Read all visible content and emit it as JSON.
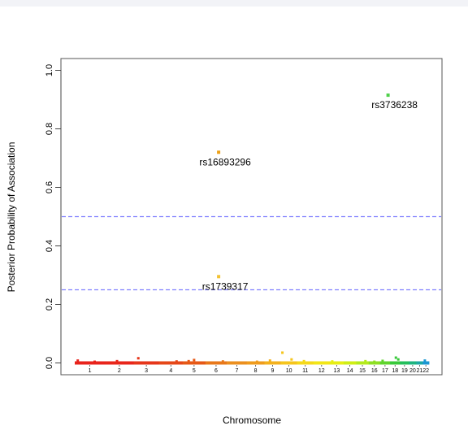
{
  "chart_data": {
    "type": "scatter",
    "xlabel": "Chromosome",
    "ylabel": "Posterior Probability of Association",
    "ylim": [
      0,
      1
    ],
    "y_ticks": [
      "0.0",
      "0.2",
      "0.4",
      "0.6",
      "0.8",
      "1.0"
    ],
    "x_categories": [
      "1",
      "2",
      "3",
      "4",
      "5",
      "6",
      "7",
      "8",
      "9",
      "10",
      "11",
      "12",
      "13",
      "14",
      "15",
      "16",
      "17",
      "18",
      "19",
      "20",
      "21",
      "22"
    ],
    "chromosome_colors": [
      "#e8231c",
      "#e8261b",
      "#e6361a",
      "#e54718",
      "#e65816",
      "#e8781a",
      "#eb8f1f",
      "#ef9b1d",
      "#f3b11c",
      "#f5c51c",
      "#f5d91a",
      "#f2e617",
      "#e6ee14",
      "#cfee15",
      "#b4ea1c",
      "#8edf23",
      "#5fd42c",
      "#38c93a",
      "#24bf5c",
      "#1eb47f",
      "#1ca9a3",
      "#1a96d2"
    ],
    "thresholds": [
      {
        "y": 0.5,
        "color": "#8080ff"
      },
      {
        "y": 0.25,
        "color": "#8080ff"
      }
    ],
    "highlighted_points": [
      {
        "label": "rs3736238",
        "chromosome": "17",
        "y": 0.915,
        "color": "#4ed04a"
      },
      {
        "label": "rs16893296",
        "chromosome": "6",
        "y": 0.72,
        "color": "#eda117"
      },
      {
        "label": "rs1739317",
        "chromosome": "6",
        "y": 0.295,
        "color": "#f2c233"
      }
    ],
    "background_points": [
      {
        "chromosome": "1",
        "y": 0.008
      },
      {
        "chromosome": "1",
        "y": 0.004
      },
      {
        "chromosome": "2",
        "y": 0.006
      },
      {
        "chromosome": "3",
        "y": 0.016
      },
      {
        "chromosome": "4",
        "y": 0.005
      },
      {
        "chromosome": "5",
        "y": 0.01
      },
      {
        "chromosome": "5",
        "y": 0.006
      },
      {
        "chromosome": "6",
        "y": 0.005
      },
      {
        "chromosome": "8",
        "y": 0.004
      },
      {
        "chromosome": "9",
        "y": 0.008
      },
      {
        "chromosome": "10",
        "y": 0.035
      },
      {
        "chromosome": "10",
        "y": 0.012
      },
      {
        "chromosome": "11",
        "y": 0.006
      },
      {
        "chromosome": "13",
        "y": 0.005
      },
      {
        "chromosome": "15",
        "y": 0.006
      },
      {
        "chromosome": "16",
        "y": 0.004
      },
      {
        "chromosome": "17",
        "y": 0.007
      },
      {
        "chromosome": "18",
        "y": 0.012
      },
      {
        "chromosome": "18",
        "y": 0.018
      },
      {
        "chromosome": "22",
        "y": 0.008
      }
    ]
  }
}
